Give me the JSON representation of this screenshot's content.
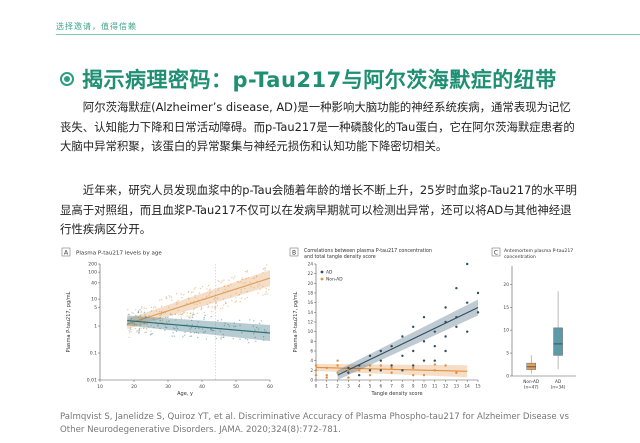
{
  "header": {
    "tagline": "选择邀请，值得信赖"
  },
  "section": {
    "title": "揭示病理密码：p-Tau217与阿尔茨海默症的纽带"
  },
  "body": {
    "p1": "阿尔茨海默症(Alzheimer’s disease, AD)是一种影响大脑功能的神经系统疾病，通常表现为记忆丧失、认知能力下降和日常活动障碍。而p-Tau217是一种磷酸化的Tau蛋白，它在阿尔茨海默症患者的大脑中异常积聚，该蛋白的异常聚集与神经元损伤和认知功能下降密切相关。",
    "p2": "近年来，研究人员发现血浆中的p-Tau会随着年龄的增长不断上升，25岁时血浆p-Tau217的水平明显高于对照组，而且血浆P-Tau217不仅可以在发病早期就可以检测出异常，还可以将AD与其他神经退行性疾病区分开。"
  },
  "figures": {
    "panel_a": {
      "letter": "A",
      "title": "Plasma P-tau217 levels by age"
    },
    "panel_b": {
      "letter": "B",
      "title": "Correlations between plasma P-tau217 concentration",
      "title2": "and total tangle density score"
    },
    "panel_c": {
      "letter": "C",
      "title": "Antemortem plasma P-tau217",
      "title2": "concentration"
    }
  },
  "caption": "Palmqvist S, Janelidze S, Quiroz YT, et al. Discriminative Accuracy of Plasma Phospho-tau217 for Alzheimer Disease vs Other Neurodegenerative Disorders. JAMA. 2020;324(8):772-781.",
  "chart_data": [
    {
      "type": "scatter",
      "title": "Plasma P-tau217 levels by age",
      "xlabel": "Age, y",
      "ylabel": "Plasma P-tau217, pg/mL",
      "x_ticks": [
        10,
        20,
        30,
        40,
        50,
        60
      ],
      "y_ticks": [
        "0.01",
        "0.1",
        "1",
        "5",
        "10",
        "40",
        "100",
        "200"
      ],
      "xlim": [
        10,
        60
      ],
      "ylim_log": [
        0.01,
        200
      ],
      "y_scale": "log",
      "series": [
        {
          "color": "#e0a05e",
          "trend": [
            [
              18,
              1.2
            ],
            [
              60,
              60
            ]
          ]
        },
        {
          "color": "#2d6e78",
          "trend": [
            [
              18,
              1.6
            ],
            [
              60,
              0.55
            ]
          ]
        }
      ],
      "reference_x": 44
    },
    {
      "type": "scatter",
      "title": "Correlations between plasma P-tau217 concentration and total tangle density score",
      "xlabel": "Tangle density score",
      "ylabel": "Plasma P-tau217, pg/mL",
      "x_ticks": [
        0,
        1,
        2,
        3,
        4,
        5,
        6,
        7,
        8,
        9,
        10,
        11,
        12,
        13,
        14,
        15
      ],
      "y_ticks": [
        0,
        2,
        4,
        6,
        8,
        10,
        12,
        14,
        16,
        18,
        20,
        22,
        24
      ],
      "xlim": [
        0,
        15
      ],
      "ylim": [
        0,
        24
      ],
      "legend": [
        {
          "label": "AD",
          "color": "#2d4f66"
        },
        {
          "label": "Non-AD",
          "color": "#e0903f"
        }
      ],
      "legend_position": "top-left",
      "series": [
        {
          "name": "AD",
          "color": "#2d4f66",
          "points": [
            [
              3,
              1.5
            ],
            [
              4,
              3
            ],
            [
              5,
              2
            ],
            [
              6,
              4
            ],
            [
              6,
              6
            ],
            [
              7,
              3
            ],
            [
              7,
              7
            ],
            [
              8,
              5
            ],
            [
              8,
              9
            ],
            [
              9,
              6
            ],
            [
              9,
              11
            ],
            [
              10,
              8
            ],
            [
              10,
              13
            ],
            [
              11,
              7
            ],
            [
              11,
              10
            ],
            [
              12,
              9
            ],
            [
              12,
              15
            ],
            [
              13,
              11
            ],
            [
              13,
              13
            ],
            [
              14,
              16
            ],
            [
              14,
              10
            ],
            [
              14,
              24
            ],
            [
              15,
              14
            ],
            [
              15,
              18
            ],
            [
              5,
              5
            ],
            [
              6,
              2
            ],
            [
              9,
              3
            ],
            [
              11,
              4
            ],
            [
              12,
              6
            ],
            [
              13,
              19
            ],
            [
              3,
              2.5
            ],
            [
              4,
              1
            ],
            [
              8,
              2
            ],
            [
              10,
              4
            ],
            [
              12,
              12
            ]
          ],
          "trend": [
            [
              2,
              1
            ],
            [
              15,
              15
            ]
          ]
        },
        {
          "name": "Non-AD",
          "color": "#e0903f",
          "points": [
            [
              0,
              2
            ],
            [
              0,
              3
            ],
            [
              1,
              1
            ],
            [
              1,
              2.5
            ],
            [
              2,
              1.5
            ],
            [
              2,
              3
            ],
            [
              3,
              2
            ],
            [
              3,
              0.5
            ],
            [
              4,
              2
            ],
            [
              5,
              1
            ],
            [
              6,
              3
            ],
            [
              7,
              1.5
            ],
            [
              8,
              2
            ],
            [
              9,
              2.5
            ],
            [
              10,
              1
            ],
            [
              11,
              2
            ],
            [
              12,
              3
            ],
            [
              13,
              1.5
            ],
            [
              0,
              1
            ],
            [
              1,
              0.5
            ],
            [
              2,
              4
            ],
            [
              5,
              3
            ],
            [
              7,
              2.5
            ],
            [
              9,
              1
            ],
            [
              11,
              3.2
            ]
          ],
          "trend": [
            [
              0,
              2.6
            ],
            [
              14,
              1.8
            ]
          ]
        }
      ]
    },
    {
      "type": "box",
      "title": "Antemortem plasma P-tau217 concentration",
      "categories": [
        "Non-AD",
        "AD"
      ],
      "category_n": [
        "(n=47)",
        "(n=34)"
      ],
      "x_ticks": [
        "Non-AD\n(n=47)",
        "AD\n(n=34)"
      ],
      "y_ticks": [
        0,
        5,
        10,
        15,
        20
      ],
      "ylim": [
        0,
        24
      ],
      "boxes": [
        {
          "name": "Non-AD",
          "color": "#e0a05e",
          "min": 0.5,
          "q1": 1.4,
          "median": 2.0,
          "q3": 2.8,
          "max": 4.5
        },
        {
          "name": "AD",
          "color": "#5b9aa6",
          "min": 1.5,
          "q1": 4.5,
          "median": 7.0,
          "q3": 10.5,
          "max": 18.5
        }
      ]
    }
  ]
}
